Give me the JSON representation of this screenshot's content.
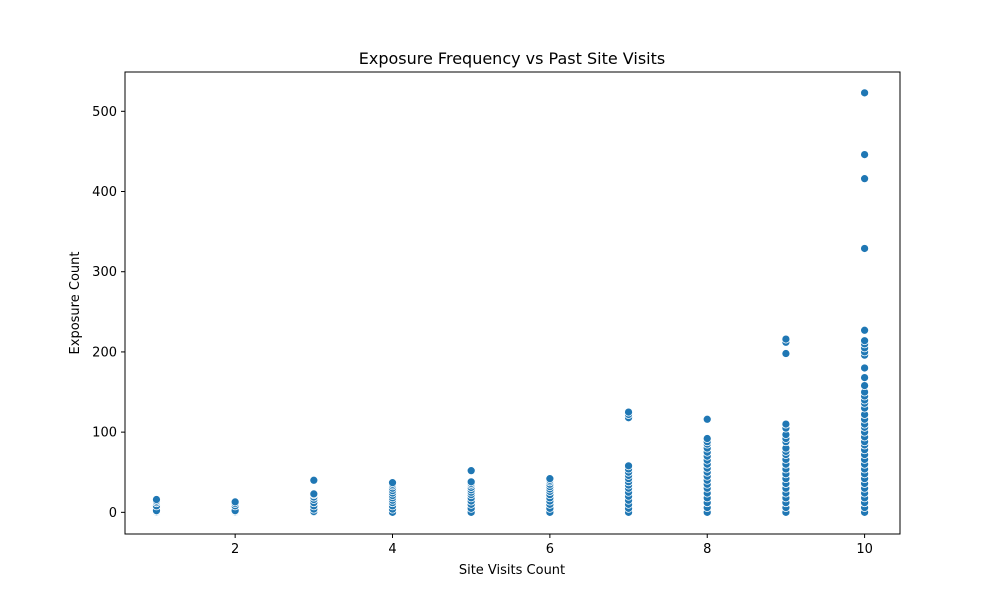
{
  "chart_data": {
    "type": "scatter",
    "title": "Exposure Frequency vs Past Site Visits",
    "xlabel": "Site Visits Count",
    "ylabel": "Exposure Count",
    "xlim": [
      0.6,
      10.45
    ],
    "ylim": [
      -27,
      549
    ],
    "xticks": [
      2,
      4,
      6,
      8,
      10
    ],
    "yticks": [
      0,
      100,
      200,
      300,
      400,
      500
    ],
    "grid": false,
    "point_color": "#1f77b4",
    "point_edge_color": "#ffffff",
    "series": [
      {
        "points": [
          {
            "x": 1,
            "y": 0
          },
          {
            "x": 1,
            "y": 1
          },
          {
            "x": 1,
            "y": 2
          },
          {
            "x": 1,
            "y": 8
          },
          {
            "x": 1,
            "y": 12
          },
          {
            "x": 1,
            "y": 14
          },
          {
            "x": 1,
            "y": 16
          },
          {
            "x": 2,
            "y": 0
          },
          {
            "x": 2,
            "y": 1
          },
          {
            "x": 2,
            "y": 2
          },
          {
            "x": 2,
            "y": 8
          },
          {
            "x": 2,
            "y": 11
          },
          {
            "x": 2,
            "y": 13
          },
          {
            "x": 3,
            "y": 0
          },
          {
            "x": 3,
            "y": 1
          },
          {
            "x": 3,
            "y": 4
          },
          {
            "x": 3,
            "y": 8
          },
          {
            "x": 3,
            "y": 12
          },
          {
            "x": 3,
            "y": 16
          },
          {
            "x": 3,
            "y": 19
          },
          {
            "x": 3,
            "y": 22
          },
          {
            "x": 3,
            "y": 23
          },
          {
            "x": 3,
            "y": 40
          },
          {
            "x": 4,
            "y": 0
          },
          {
            "x": 4,
            "y": 4
          },
          {
            "x": 4,
            "y": 8
          },
          {
            "x": 4,
            "y": 12
          },
          {
            "x": 4,
            "y": 15
          },
          {
            "x": 4,
            "y": 18
          },
          {
            "x": 4,
            "y": 21
          },
          {
            "x": 4,
            "y": 24
          },
          {
            "x": 4,
            "y": 27
          },
          {
            "x": 4,
            "y": 30
          },
          {
            "x": 4,
            "y": 33
          },
          {
            "x": 4,
            "y": 35
          },
          {
            "x": 4,
            "y": 37
          },
          {
            "x": 5,
            "y": 0
          },
          {
            "x": 5,
            "y": 5
          },
          {
            "x": 5,
            "y": 10
          },
          {
            "x": 5,
            "y": 14
          },
          {
            "x": 5,
            "y": 18
          },
          {
            "x": 5,
            "y": 22
          },
          {
            "x": 5,
            "y": 25
          },
          {
            "x": 5,
            "y": 28
          },
          {
            "x": 5,
            "y": 31
          },
          {
            "x": 5,
            "y": 34
          },
          {
            "x": 5,
            "y": 36
          },
          {
            "x": 5,
            "y": 38
          },
          {
            "x": 5,
            "y": 52
          },
          {
            "x": 6,
            "y": 0
          },
          {
            "x": 6,
            "y": 5
          },
          {
            "x": 6,
            "y": 10
          },
          {
            "x": 6,
            "y": 14
          },
          {
            "x": 6,
            "y": 18
          },
          {
            "x": 6,
            "y": 22
          },
          {
            "x": 6,
            "y": 26
          },
          {
            "x": 6,
            "y": 29
          },
          {
            "x": 6,
            "y": 32
          },
          {
            "x": 6,
            "y": 35
          },
          {
            "x": 6,
            "y": 38
          },
          {
            "x": 6,
            "y": 40
          },
          {
            "x": 6,
            "y": 42
          },
          {
            "x": 7,
            "y": 0
          },
          {
            "x": 7,
            "y": 5
          },
          {
            "x": 7,
            "y": 10
          },
          {
            "x": 7,
            "y": 15
          },
          {
            "x": 7,
            "y": 20
          },
          {
            "x": 7,
            "y": 25
          },
          {
            "x": 7,
            "y": 30
          },
          {
            "x": 7,
            "y": 34
          },
          {
            "x": 7,
            "y": 38
          },
          {
            "x": 7,
            "y": 42
          },
          {
            "x": 7,
            "y": 46
          },
          {
            "x": 7,
            "y": 50
          },
          {
            "x": 7,
            "y": 54
          },
          {
            "x": 7,
            "y": 58
          },
          {
            "x": 7,
            "y": 118
          },
          {
            "x": 7,
            "y": 122
          },
          {
            "x": 7,
            "y": 125
          },
          {
            "x": 8,
            "y": 0
          },
          {
            "x": 8,
            "y": 6
          },
          {
            "x": 8,
            "y": 12
          },
          {
            "x": 8,
            "y": 18
          },
          {
            "x": 8,
            "y": 24
          },
          {
            "x": 8,
            "y": 30
          },
          {
            "x": 8,
            "y": 35
          },
          {
            "x": 8,
            "y": 40
          },
          {
            "x": 8,
            "y": 45
          },
          {
            "x": 8,
            "y": 50
          },
          {
            "x": 8,
            "y": 55
          },
          {
            "x": 8,
            "y": 60
          },
          {
            "x": 8,
            "y": 65
          },
          {
            "x": 8,
            "y": 70
          },
          {
            "x": 8,
            "y": 75
          },
          {
            "x": 8,
            "y": 80
          },
          {
            "x": 8,
            "y": 85
          },
          {
            "x": 8,
            "y": 88
          },
          {
            "x": 8,
            "y": 92
          },
          {
            "x": 8,
            "y": 116
          },
          {
            "x": 9,
            "y": 0
          },
          {
            "x": 9,
            "y": 6
          },
          {
            "x": 9,
            "y": 12
          },
          {
            "x": 9,
            "y": 18
          },
          {
            "x": 9,
            "y": 24
          },
          {
            "x": 9,
            "y": 30
          },
          {
            "x": 9,
            "y": 36
          },
          {
            "x": 9,
            "y": 42
          },
          {
            "x": 9,
            "y": 48
          },
          {
            "x": 9,
            "y": 54
          },
          {
            "x": 9,
            "y": 60
          },
          {
            "x": 9,
            "y": 66
          },
          {
            "x": 9,
            "y": 72
          },
          {
            "x": 9,
            "y": 76
          },
          {
            "x": 9,
            "y": 80
          },
          {
            "x": 9,
            "y": 88
          },
          {
            "x": 9,
            "y": 92
          },
          {
            "x": 9,
            "y": 97
          },
          {
            "x": 9,
            "y": 105
          },
          {
            "x": 9,
            "y": 110
          },
          {
            "x": 9,
            "y": 198
          },
          {
            "x": 9,
            "y": 212
          },
          {
            "x": 9,
            "y": 216
          },
          {
            "x": 10,
            "y": 0
          },
          {
            "x": 10,
            "y": 6
          },
          {
            "x": 10,
            "y": 12
          },
          {
            "x": 10,
            "y": 18
          },
          {
            "x": 10,
            "y": 24
          },
          {
            "x": 10,
            "y": 30
          },
          {
            "x": 10,
            "y": 36
          },
          {
            "x": 10,
            "y": 42
          },
          {
            "x": 10,
            "y": 48
          },
          {
            "x": 10,
            "y": 54
          },
          {
            "x": 10,
            "y": 60
          },
          {
            "x": 10,
            "y": 66
          },
          {
            "x": 10,
            "y": 72
          },
          {
            "x": 10,
            "y": 78
          },
          {
            "x": 10,
            "y": 84
          },
          {
            "x": 10,
            "y": 88
          },
          {
            "x": 10,
            "y": 94
          },
          {
            "x": 10,
            "y": 100
          },
          {
            "x": 10,
            "y": 106
          },
          {
            "x": 10,
            "y": 110
          },
          {
            "x": 10,
            "y": 116
          },
          {
            "x": 10,
            "y": 122
          },
          {
            "x": 10,
            "y": 130
          },
          {
            "x": 10,
            "y": 136
          },
          {
            "x": 10,
            "y": 140
          },
          {
            "x": 10,
            "y": 145
          },
          {
            "x": 10,
            "y": 150
          },
          {
            "x": 10,
            "y": 158
          },
          {
            "x": 10,
            "y": 168
          },
          {
            "x": 10,
            "y": 180
          },
          {
            "x": 10,
            "y": 196
          },
          {
            "x": 10,
            "y": 200
          },
          {
            "x": 10,
            "y": 205
          },
          {
            "x": 10,
            "y": 210
          },
          {
            "x": 10,
            "y": 214
          },
          {
            "x": 10,
            "y": 227
          },
          {
            "x": 10,
            "y": 329
          },
          {
            "x": 10,
            "y": 416
          },
          {
            "x": 10,
            "y": 446
          },
          {
            "x": 10,
            "y": 523
          }
        ]
      }
    ]
  }
}
